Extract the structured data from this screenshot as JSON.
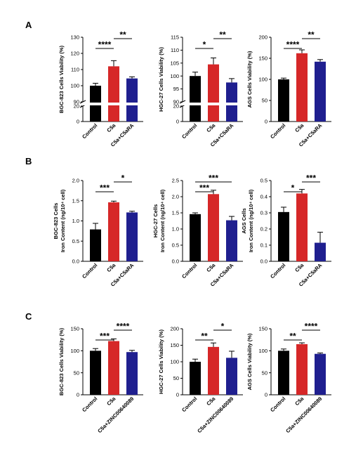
{
  "colors": {
    "control": "#000000",
    "c5a": "#d62728",
    "treated": "#1f1f8f"
  },
  "panels": [
    {
      "letter": "A"
    },
    {
      "letter": "B"
    },
    {
      "letter": "C"
    }
  ],
  "chart_data": [
    {
      "type": "bar",
      "panel": "A",
      "ylabel": "BGC-823 Cells Viability (%)",
      "categories": [
        "Control",
        "C5a",
        "C5a+C5aRA"
      ],
      "values": [
        100,
        112,
        104.5
      ],
      "errors": [
        1.5,
        3.5,
        1.0
      ],
      "axis_break": {
        "lower": [
          0,
          20
        ],
        "upper": [
          90,
          130
        ]
      },
      "yticks_lower": [
        0,
        20
      ],
      "yticks_upper": [
        90,
        100,
        110,
        120,
        130
      ],
      "significance": [
        {
          "from": 0,
          "to": 1,
          "label": "****"
        },
        {
          "from": 1,
          "to": 2,
          "label": "**"
        }
      ]
    },
    {
      "type": "bar",
      "panel": "A",
      "ylabel": "HGC-27 Cells Viability (%)",
      "categories": [
        "Control",
        "C5a",
        "C5a+C5aRA"
      ],
      "values": [
        100,
        104.5,
        97.5
      ],
      "errors": [
        1.5,
        2.5,
        1.5
      ],
      "axis_break": {
        "lower": [
          0,
          20
        ],
        "upper": [
          90,
          115
        ]
      },
      "yticks_lower": [
        0,
        20
      ],
      "yticks_upper": [
        90,
        95,
        100,
        105,
        110,
        115
      ],
      "significance": [
        {
          "from": 0,
          "to": 1,
          "label": "*"
        },
        {
          "from": 1,
          "to": 2,
          "label": "**"
        }
      ]
    },
    {
      "type": "bar",
      "panel": "A",
      "ylabel": "AGS Cells Viability (%)",
      "categories": [
        "Control",
        "C5a",
        "C5a+C5aRA"
      ],
      "values": [
        100,
        162,
        142
      ],
      "errors": [
        3,
        8,
        5
      ],
      "ylim": [
        0,
        200
      ],
      "yticks": [
        0,
        50,
        100,
        150,
        200
      ],
      "significance": [
        {
          "from": 0,
          "to": 1,
          "label": "****"
        },
        {
          "from": 1,
          "to": 2,
          "label": "**"
        }
      ]
    },
    {
      "type": "bar",
      "panel": "B",
      "ylabel": [
        "BGC-823 Cells",
        "Iron Content (ng/10⁴ cell)"
      ],
      "categories": [
        "Control",
        "C5a",
        "C5a+C5aRA"
      ],
      "values": [
        0.79,
        1.46,
        1.21
      ],
      "errors": [
        0.15,
        0.03,
        0.03
      ],
      "ylim": [
        0,
        2.0
      ],
      "yticks": [
        "0.0",
        "0.5",
        "1.0",
        "1.5",
        "2.0"
      ],
      "significance": [
        {
          "from": 0,
          "to": 1,
          "label": "***"
        },
        {
          "from": 1,
          "to": 2,
          "label": "*"
        }
      ]
    },
    {
      "type": "bar",
      "panel": "B",
      "ylabel": [
        "HGC-27 Cells",
        "Iron Content (ng/10⁴ cell)"
      ],
      "categories": [
        "Control",
        "C5a",
        "C5a+C5aRA"
      ],
      "values": [
        1.46,
        2.08,
        1.27
      ],
      "errors": [
        0.04,
        0.12,
        0.12
      ],
      "ylim": [
        0,
        2.5
      ],
      "yticks": [
        "0.0",
        "0.5",
        "1.0",
        "1.5",
        "2.0",
        "2.5"
      ],
      "significance": [
        {
          "from": 0,
          "to": 1,
          "label": "***"
        },
        {
          "from": 0,
          "to": 2,
          "label": "***"
        }
      ]
    },
    {
      "type": "bar",
      "panel": "B",
      "ylabel": [
        "AGS Cells",
        "Iron Content (ng/10⁴ cell)"
      ],
      "categories": [
        "Control",
        "C5a",
        "C5a+C5aRA"
      ],
      "values": [
        0.305,
        0.42,
        0.115
      ],
      "errors": [
        0.03,
        0.025,
        0.065
      ],
      "ylim": [
        0,
        0.5
      ],
      "yticks": [
        "0.0",
        "0.1",
        "0.2",
        "0.3",
        "0.4",
        "0.5"
      ],
      "significance": [
        {
          "from": 0,
          "to": 1,
          "label": "*"
        },
        {
          "from": 1,
          "to": 2,
          "label": "***"
        }
      ]
    },
    {
      "type": "bar",
      "panel": "C",
      "ylabel": "BGC-823 Cells Viability (%)",
      "categories": [
        "Control",
        "C5a",
        "C5a+ZINC00640089"
      ],
      "values": [
        100,
        122,
        97
      ],
      "errors": [
        5,
        5,
        4
      ],
      "ylim": [
        0,
        150
      ],
      "yticks": [
        0,
        50,
        100,
        150
      ],
      "significance": [
        {
          "from": 0,
          "to": 1,
          "label": "***"
        },
        {
          "from": 1,
          "to": 2,
          "label": "****"
        }
      ]
    },
    {
      "type": "bar",
      "panel": "C",
      "ylabel": "HGC-27 Cells Viability (%)",
      "categories": [
        "Control",
        "C5a",
        "C5a+ZINC00640089"
      ],
      "values": [
        100,
        145,
        112
      ],
      "errors": [
        8,
        12,
        20
      ],
      "ylim": [
        0,
        200
      ],
      "yticks": [
        0,
        50,
        100,
        150,
        200
      ],
      "significance": [
        {
          "from": 0,
          "to": 1,
          "label": "**"
        },
        {
          "from": 1,
          "to": 2,
          "label": "*"
        }
      ]
    },
    {
      "type": "bar",
      "panel": "C",
      "ylabel": "AGS Cells Viability (%)",
      "categories": [
        "Control",
        "C5a",
        "C5a+ZINC00640089"
      ],
      "values": [
        100,
        115,
        93
      ],
      "errors": [
        4,
        3,
        2
      ],
      "ylim": [
        0,
        150
      ],
      "yticks": [
        0,
        50,
        100,
        150
      ],
      "significance": [
        {
          "from": 0,
          "to": 1,
          "label": "**"
        },
        {
          "from": 1,
          "to": 2,
          "label": "****"
        }
      ]
    }
  ]
}
